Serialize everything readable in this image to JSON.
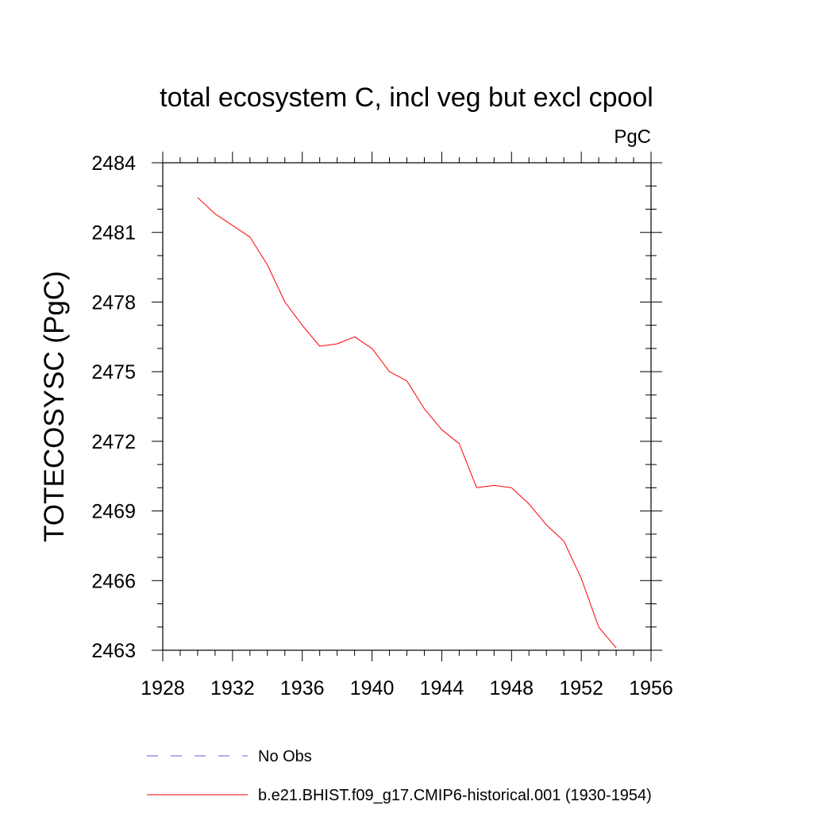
{
  "chart_data": {
    "type": "line",
    "title": "total ecosystem C, incl veg but excl cpool",
    "units": "PgC",
    "ylabel": "TOTECOSYSC  (PgC)",
    "xlabel": "",
    "xlim": [
      1928,
      1956
    ],
    "ylim": [
      2463,
      2484
    ],
    "xticks": [
      1928,
      1932,
      1936,
      1940,
      1944,
      1948,
      1952,
      1956
    ],
    "yticks": [
      2463,
      2466,
      2469,
      2472,
      2475,
      2478,
      2481,
      2484
    ],
    "series": [
      {
        "name": "b.e21.BHIST.f09_g17.CMIP6-historical.001 (1930-1954)",
        "color": "#ff0000",
        "x": [
          1930,
          1931,
          1932,
          1933,
          1934,
          1935,
          1936,
          1937,
          1938,
          1939,
          1940,
          1941,
          1942,
          1943,
          1944,
          1945,
          1946,
          1947,
          1948,
          1949,
          1950,
          1951,
          1952,
          1953,
          1954
        ],
        "y": [
          2482.5,
          2481.8,
          2481.3,
          2480.8,
          2479.6,
          2478.0,
          2477.0,
          2476.1,
          2476.2,
          2476.5,
          2476.0,
          2475.0,
          2474.6,
          2473.4,
          2472.5,
          2471.9,
          2470.0,
          2470.1,
          2470.0,
          2469.3,
          2468.4,
          2467.7,
          2466.1,
          2464.0,
          2463.1
        ]
      }
    ],
    "legend": {
      "placement": "bottom",
      "entries": [
        {
          "label": "No Obs",
          "color": "#6a5acd",
          "style": "dashed"
        },
        {
          "label": "b.e21.BHIST.f09_g17.CMIP6-historical.001 (1930-1954)",
          "color": "#ff0000",
          "style": "solid"
        }
      ]
    }
  }
}
